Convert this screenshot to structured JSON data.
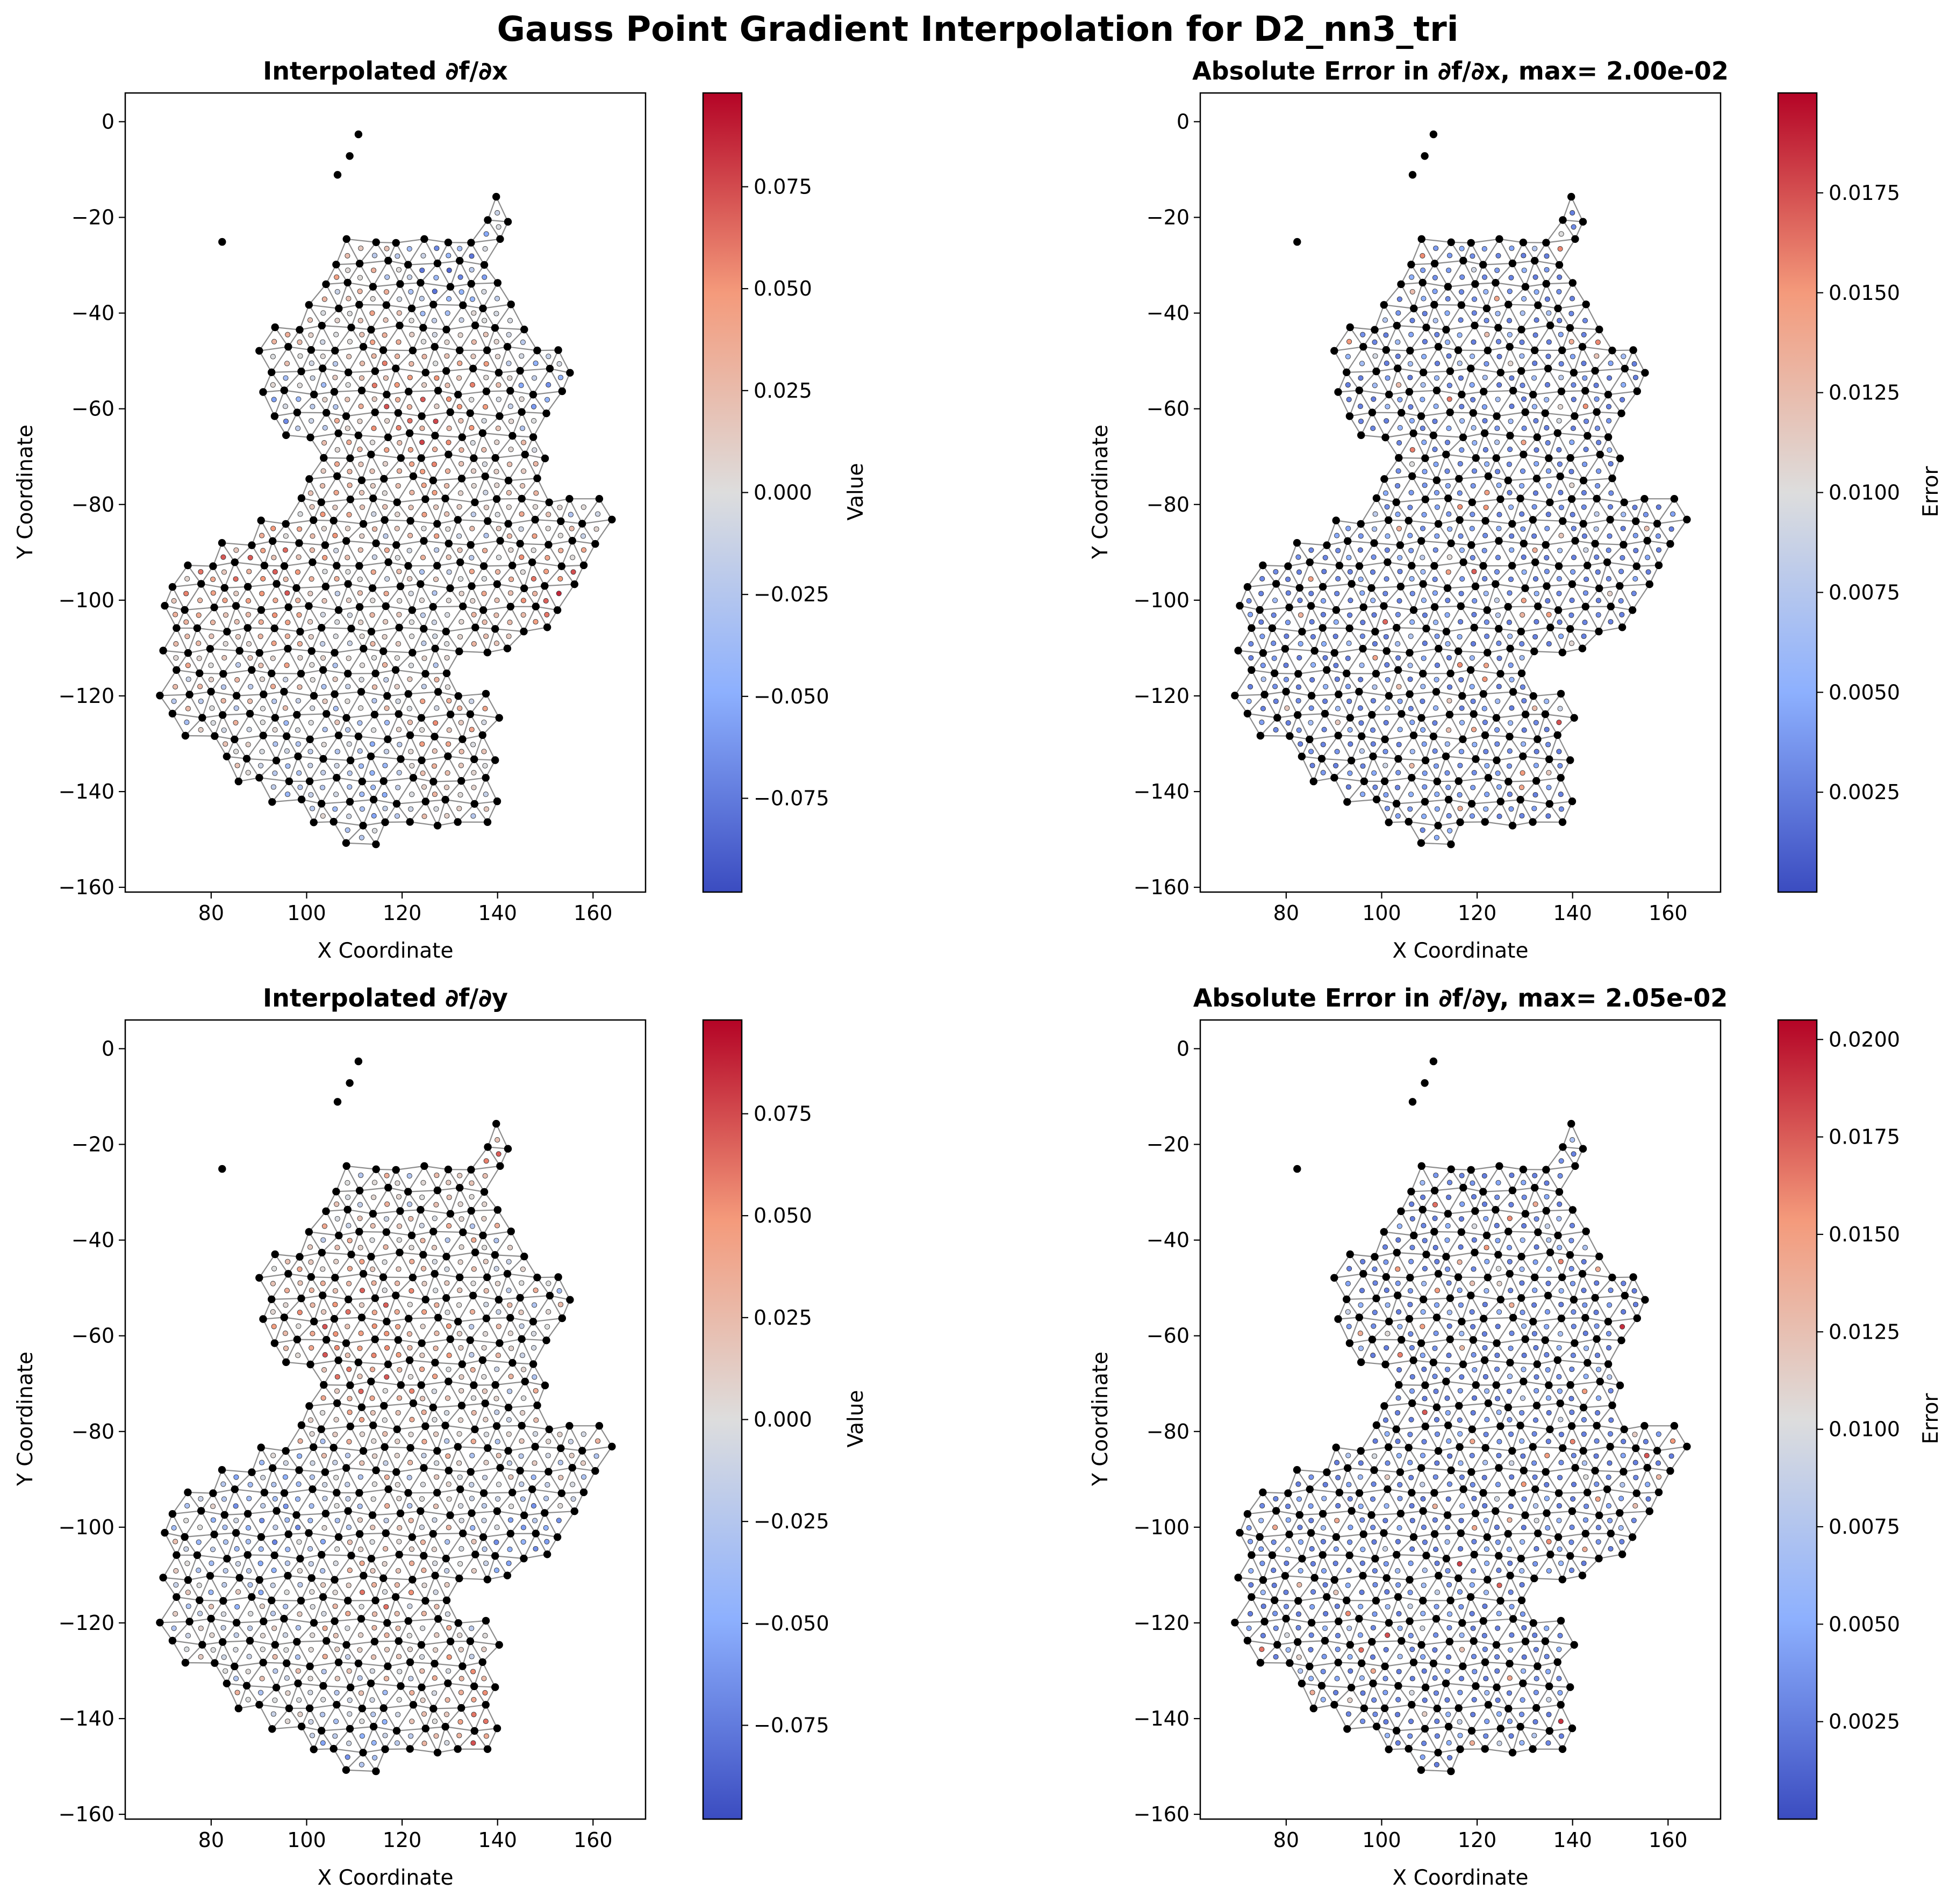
{
  "figure": {
    "title": "Gauss Point Gradient Interpolation for D2_nn3_tri"
  },
  "chart_data": [
    {
      "type": "scatter",
      "title": "Interpolated ∂f/∂x",
      "xlabel": "X Coordinate",
      "ylabel": "Y Coordinate",
      "xlim": [
        62,
        171
      ],
      "ylim": [
        -161,
        6
      ],
      "xticks": [
        80,
        100,
        120,
        140,
        160
      ],
      "yticks": [
        0,
        -20,
        -40,
        -60,
        -80,
        -100,
        -120,
        -140,
        -160
      ],
      "grid": false,
      "colorbar": {
        "label": "Value",
        "colormap": "coolwarm",
        "range": [
          -0.098,
          0.098
        ],
        "ticks": [
          0.075,
          0.05,
          0.025,
          0.0,
          -0.025,
          -0.05,
          -0.075
        ],
        "tick_labels": [
          "0.075",
          "0.050",
          "0.025",
          "0.000",
          "−0.025",
          "−0.050",
          "−0.075"
        ]
      },
      "field": "dfdx",
      "mesh_color": "#8c8c8c",
      "node_color": "#000000"
    },
    {
      "type": "scatter",
      "title": "Absolute Error in ∂f/∂x, max= 2.00e-02",
      "xlabel": "X Coordinate",
      "ylabel": "Y Coordinate",
      "xlim": [
        62,
        171
      ],
      "ylim": [
        -161,
        6
      ],
      "xticks": [
        80,
        100,
        120,
        140,
        160
      ],
      "yticks": [
        0,
        -20,
        -40,
        -60,
        -80,
        -100,
        -120,
        -140,
        -160
      ],
      "grid": false,
      "colorbar": {
        "label": "Error",
        "colormap": "coolwarm",
        "range": [
          0.0,
          0.02
        ],
        "ticks": [
          0.0175,
          0.015,
          0.0125,
          0.01,
          0.0075,
          0.005,
          0.0025
        ],
        "tick_labels": [
          "0.0175",
          "0.0150",
          "0.0125",
          "0.0100",
          "0.0075",
          "0.0050",
          "0.0025"
        ]
      },
      "field": "errx",
      "mesh_color": "#8c8c8c",
      "node_color": "#000000"
    },
    {
      "type": "scatter",
      "title": "Interpolated ∂f/∂y",
      "xlabel": "X Coordinate",
      "ylabel": "Y Coordinate",
      "xlim": [
        62,
        171
      ],
      "ylim": [
        -161,
        6
      ],
      "xticks": [
        80,
        100,
        120,
        140,
        160
      ],
      "yticks": [
        0,
        -20,
        -40,
        -60,
        -80,
        -100,
        -120,
        -140,
        -160
      ],
      "grid": false,
      "colorbar": {
        "label": "Value",
        "colormap": "coolwarm",
        "range": [
          -0.098,
          0.098
        ],
        "ticks": [
          0.075,
          0.05,
          0.025,
          0.0,
          -0.025,
          -0.05,
          -0.075
        ],
        "tick_labels": [
          "0.075",
          "0.050",
          "0.025",
          "0.000",
          "−0.025",
          "−0.050",
          "−0.075"
        ]
      },
      "field": "dfdy",
      "mesh_color": "#8c8c8c",
      "node_color": "#000000"
    },
    {
      "type": "scatter",
      "title": "Absolute Error in ∂f/∂y, max= 2.05e-02",
      "xlabel": "X Coordinate",
      "ylabel": "Y Coordinate",
      "xlim": [
        62,
        171
      ],
      "ylim": [
        -161,
        6
      ],
      "xticks": [
        80,
        100,
        120,
        140,
        160
      ],
      "yticks": [
        0,
        -20,
        -40,
        -60,
        -80,
        -100,
        -120,
        -140,
        -160
      ],
      "grid": false,
      "colorbar": {
        "label": "Error",
        "colormap": "coolwarm",
        "range": [
          0.0,
          0.0205
        ],
        "ticks": [
          0.02,
          0.0175,
          0.015,
          0.0125,
          0.01,
          0.0075,
          0.005,
          0.0025
        ],
        "tick_labels": [
          "0.0200",
          "0.0175",
          "0.0150",
          "0.0125",
          "0.0100",
          "0.0075",
          "0.0050",
          "0.0025"
        ]
      },
      "field": "erry",
      "mesh_color": "#8c8c8c",
      "node_color": "#000000"
    }
  ],
  "domain_outline": [
    [
      112,
      -1
    ],
    [
      113,
      -3
    ],
    [
      111,
      -7
    ],
    [
      107,
      -11
    ],
    [
      103,
      -15
    ],
    [
      99,
      -19
    ],
    [
      95,
      -21
    ],
    [
      87,
      -22
    ],
    [
      83,
      -24
    ],
    [
      80,
      -28
    ],
    [
      84,
      -33
    ],
    [
      88,
      -38
    ],
    [
      92,
      -42
    ],
    [
      96,
      -40
    ],
    [
      98,
      -36
    ],
    [
      104,
      -27
    ],
    [
      109,
      -24
    ],
    [
      114,
      -23
    ],
    [
      119,
      -23
    ],
    [
      124,
      -24
    ],
    [
      129,
      -23
    ],
    [
      132,
      -20
    ],
    [
      136,
      -17
    ],
    [
      141,
      -14
    ],
    [
      145,
      -12
    ],
    [
      147,
      -11
    ],
    [
      145,
      -15
    ],
    [
      143,
      -20
    ],
    [
      143,
      -30
    ],
    [
      147,
      -38
    ],
    [
      150,
      -44
    ],
    [
      154,
      -49
    ],
    [
      157,
      -54
    ],
    [
      157,
      -60
    ],
    [
      153,
      -63
    ],
    [
      151,
      -68
    ],
    [
      149,
      -74
    ],
    [
      155,
      -77
    ],
    [
      161,
      -78
    ],
    [
      164,
      -80
    ],
    [
      165,
      -86
    ],
    [
      162,
      -92
    ],
    [
      158,
      -98
    ],
    [
      155,
      -103
    ],
    [
      152,
      -105
    ],
    [
      147,
      -110
    ],
    [
      141,
      -112
    ],
    [
      136,
      -113
    ],
    [
      131,
      -114
    ],
    [
      136,
      -117
    ],
    [
      139,
      -121
    ],
    [
      141,
      -125
    ],
    [
      142,
      -130
    ],
    [
      142,
      -136
    ],
    [
      140,
      -143
    ],
    [
      137,
      -148
    ],
    [
      133,
      -150
    ],
    [
      128,
      -150
    ],
    [
      122,
      -150
    ],
    [
      117,
      -152
    ],
    [
      112,
      -154
    ],
    [
      107,
      -153
    ],
    [
      102,
      -150
    ],
    [
      98,
      -147
    ],
    [
      93,
      -145
    ],
    [
      88,
      -141
    ],
    [
      83,
      -137
    ],
    [
      78,
      -133
    ],
    [
      74,
      -128
    ],
    [
      70,
      -124
    ],
    [
      67,
      -118
    ],
    [
      67,
      -109
    ],
    [
      68,
      -104
    ],
    [
      71,
      -98
    ],
    [
      74,
      -94
    ],
    [
      72,
      -87
    ],
    [
      80,
      -88
    ],
    [
      85,
      -86
    ],
    [
      88,
      -83
    ],
    [
      91,
      -80
    ],
    [
      96,
      -78
    ],
    [
      99,
      -74
    ],
    [
      99,
      -70
    ],
    [
      93,
      -65
    ],
    [
      90,
      -59
    ],
    [
      89,
      -54
    ],
    [
      90,
      -49
    ],
    [
      89,
      -45
    ],
    [
      86,
      -38
    ],
    [
      85,
      -32
    ],
    [
      83,
      -28
    ],
    [
      90,
      -21
    ],
    [
      96,
      -20
    ],
    [
      101,
      -15
    ],
    [
      106,
      -10
    ],
    [
      109,
      -5
    ]
  ]
}
